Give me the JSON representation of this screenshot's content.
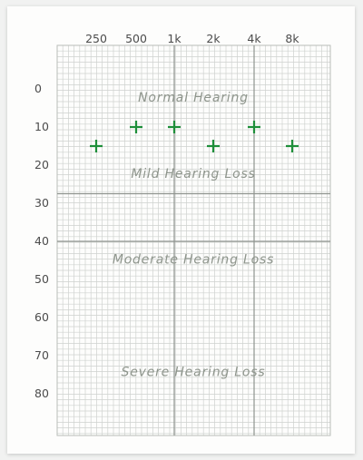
{
  "chart_data": {
    "type": "scatter",
    "title": "",
    "xlabel": "",
    "ylabel": "",
    "x_tick_labels": [
      "250",
      "500",
      "1k",
      "2k",
      "4k",
      "8k"
    ],
    "y_tick_labels": [
      "0",
      "10",
      "20",
      "30",
      "40",
      "50",
      "60",
      "70",
      "80"
    ],
    "ylim": [
      -10,
      90
    ],
    "y_inverted": true,
    "grid": true,
    "marker": "plus",
    "marker_color": "#1e8f3a",
    "major_line_color": "#8f948f",
    "grid_color": "#cfd2cf",
    "series": [
      {
        "points": [
          {
            "x": "250",
            "y": 15
          },
          {
            "x": "500",
            "y": 10
          },
          {
            "x": "1k",
            "y": 10
          },
          {
            "x": "2k",
            "y": 15
          },
          {
            "x": "4k",
            "y": 10
          },
          {
            "x": "8k",
            "y": 15
          }
        ]
      }
    ],
    "zones": [
      {
        "label": "Normal Hearing",
        "y": 0
      },
      {
        "label": "Mild Hearing Loss",
        "y": 20
      },
      {
        "label": "Moderate Hearing Loss",
        "y": 42.5
      },
      {
        "label": "Severe Hearing Loss",
        "y": 72
      }
    ],
    "boundaries": [
      27.5,
      40
    ]
  }
}
